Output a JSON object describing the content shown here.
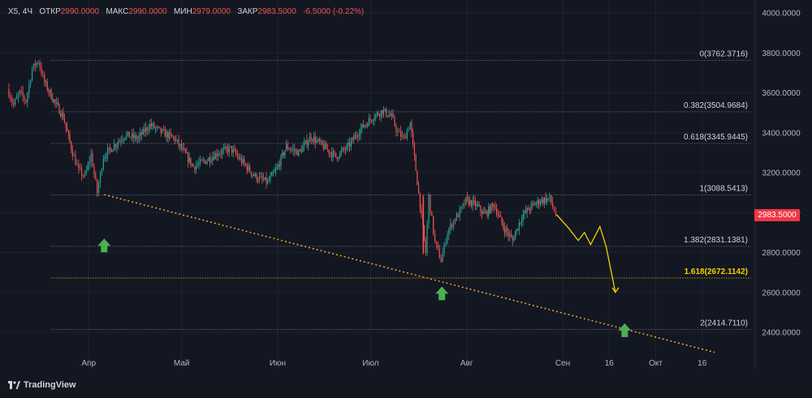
{
  "header": {
    "symbol": "X5, 4Ч",
    "open_label": "ОТКР",
    "open_value": "2990.0000",
    "high_label": "МАКС",
    "high_value": "2990.0000",
    "low_label": "МИН",
    "low_value": "2979.0000",
    "close_label": "ЗАКР",
    "close_value": "2983.5000",
    "change": "-6.5000 (-0.22%)"
  },
  "last_price_tag": "2983.5000",
  "brand": "TradingView",
  "colors": {
    "background": "#131722",
    "up": "#26a69a",
    "down": "#ef5350",
    "fib_line": "#787b86",
    "fib_highlight": "#f5d000",
    "trendline": "#f5a623",
    "projection": "#f5d000",
    "arrow": "#4caf50",
    "price_tag": "#f23645"
  },
  "chart_data": {
    "type": "candlestick",
    "y_axis": {
      "ticks": [
        "4000.0000",
        "3800.0000",
        "3600.0000",
        "3400.0000",
        "3200.0000",
        "3000.0000",
        "2800.0000",
        "2600.0000",
        "2400.0000"
      ],
      "ylim": [
        2280,
        4020
      ]
    },
    "x_axis": {
      "ticks": [
        "Апр",
        "Май",
        "Июн",
        "Июл",
        "Авг",
        "Сен",
        "16",
        "Окт",
        "16"
      ],
      "range": [
        "2024-03-06",
        "2024-10-20"
      ]
    },
    "fib_levels": [
      {
        "label": "0(3762.3716)",
        "value": 3762.3716
      },
      {
        "label": "0.382(3504.9684)",
        "value": 3504.9684
      },
      {
        "label": "0.618(3345.9445)",
        "value": 3345.9445
      },
      {
        "label": "1(3088.5413)",
        "value": 3088.5413
      },
      {
        "label": "1.382(2831.1381)",
        "value": 2831.1381
      },
      {
        "label": "1.618(2672.1142)",
        "value": 2672.1142,
        "highlight": true
      },
      {
        "label": "2(2414.7110)",
        "value": 2414.711
      }
    ],
    "price_path": [
      [
        "2024-03-06",
        3620
      ],
      [
        "2024-03-08",
        3540
      ],
      [
        "2024-03-10",
        3600
      ],
      [
        "2024-03-12",
        3560
      ],
      [
        "2024-03-14",
        3720
      ],
      [
        "2024-03-16",
        3760
      ],
      [
        "2024-03-18",
        3650
      ],
      [
        "2024-03-21",
        3560
      ],
      [
        "2024-03-24",
        3480
      ],
      [
        "2024-03-27",
        3300
      ],
      [
        "2024-03-29",
        3210
      ],
      [
        "2024-03-31",
        3180
      ],
      [
        "2024-04-02",
        3290
      ],
      [
        "2024-04-04",
        3100
      ],
      [
        "2024-04-06",
        3280
      ],
      [
        "2024-04-09",
        3330
      ],
      [
        "2024-04-13",
        3390
      ],
      [
        "2024-04-17",
        3370
      ],
      [
        "2024-04-21",
        3440
      ],
      [
        "2024-04-25",
        3400
      ],
      [
        "2024-04-29",
        3370
      ],
      [
        "2024-05-02",
        3300
      ],
      [
        "2024-05-05",
        3230
      ],
      [
        "2024-05-09",
        3260
      ],
      [
        "2024-05-13",
        3300
      ],
      [
        "2024-05-17",
        3320
      ],
      [
        "2024-05-21",
        3250
      ],
      [
        "2024-05-25",
        3180
      ],
      [
        "2024-05-29",
        3150
      ],
      [
        "2024-06-01",
        3220
      ],
      [
        "2024-06-04",
        3330
      ],
      [
        "2024-06-08",
        3300
      ],
      [
        "2024-06-12",
        3380
      ],
      [
        "2024-06-16",
        3330
      ],
      [
        "2024-06-20",
        3280
      ],
      [
        "2024-06-24",
        3330
      ],
      [
        "2024-06-28",
        3420
      ],
      [
        "2024-07-02",
        3480
      ],
      [
        "2024-07-05",
        3510
      ],
      [
        "2024-07-08",
        3480
      ],
      [
        "2024-07-10",
        3400
      ],
      [
        "2024-07-12",
        3370
      ],
      [
        "2024-07-14",
        3450
      ],
      [
        "2024-07-19",
        2800
      ],
      [
        "2024-07-20",
        3080
      ],
      [
        "2024-07-22",
        2850
      ],
      [
        "2024-07-24",
        2760
      ],
      [
        "2024-07-26",
        2900
      ],
      [
        "2024-07-28",
        2960
      ],
      [
        "2024-07-30",
        3000
      ],
      [
        "2024-08-01",
        3060
      ],
      [
        "2024-08-04",
        3040
      ],
      [
        "2024-08-07",
        2990
      ],
      [
        "2024-08-10",
        3040
      ],
      [
        "2024-08-13",
        2930
      ],
      [
        "2024-08-16",
        2860
      ],
      [
        "2024-08-19",
        2980
      ],
      [
        "2024-08-22",
        3030
      ],
      [
        "2024-08-25",
        3060
      ],
      [
        "2024-08-28",
        3070
      ],
      [
        "2024-08-30",
        2990
      ]
    ],
    "projection_path": [
      [
        "2024-08-30",
        2990
      ],
      [
        "2024-09-03",
        2920
      ],
      [
        "2024-09-06",
        2860
      ],
      [
        "2024-09-08",
        2900
      ],
      [
        "2024-09-10",
        2840
      ],
      [
        "2024-09-13",
        2930
      ],
      [
        "2024-09-15",
        2830
      ],
      [
        "2024-09-18",
        2600
      ]
    ],
    "trendline": [
      [
        "2024-04-06",
        3090
      ],
      [
        "2024-10-20",
        2300
      ]
    ],
    "arrows": [
      {
        "date": "2024-04-06",
        "value": 2870
      },
      {
        "date": "2024-07-24",
        "value": 2630
      },
      {
        "date": "2024-09-21",
        "value": 2445
      }
    ]
  }
}
